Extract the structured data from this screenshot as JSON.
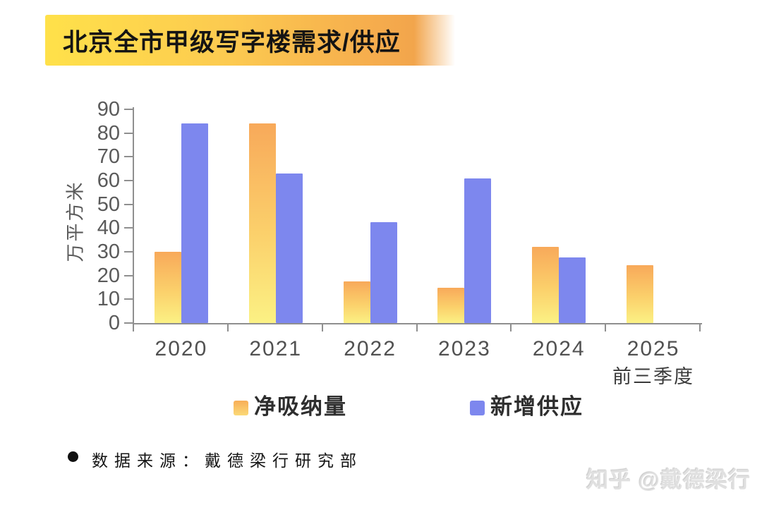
{
  "header": {
    "title": "北京全市甲级写字楼需求/供应",
    "banner_colors": {
      "left": "#ffe14a",
      "right": "#f2a54c"
    }
  },
  "chart_data": {
    "type": "bar",
    "title": "北京全市甲级写字楼需求/供应",
    "categories": [
      "2020",
      "2021",
      "2022",
      "2023",
      "2024",
      "2025"
    ],
    "x_axis_note": "前三季度",
    "ylabel": "万平方米",
    "ylim": [
      0,
      90
    ],
    "ytick_step": 10,
    "grid": false,
    "legend_position": "bottom",
    "series": [
      {
        "name": "净吸纳量",
        "color": "#f8b95f",
        "gradient": [
          "#f8a95a",
          "#fbf184"
        ],
        "values": [
          30,
          84,
          17.5,
          15,
          32,
          24.5
        ]
      },
      {
        "name": "新增供应",
        "color": "#7d87ee",
        "values": [
          84,
          63,
          42.5,
          61,
          27.5,
          null
        ]
      }
    ]
  },
  "footer": {
    "source_text": "数据来源：戴德梁行研究部"
  },
  "watermark": {
    "text": "知乎 @戴德梁行"
  }
}
